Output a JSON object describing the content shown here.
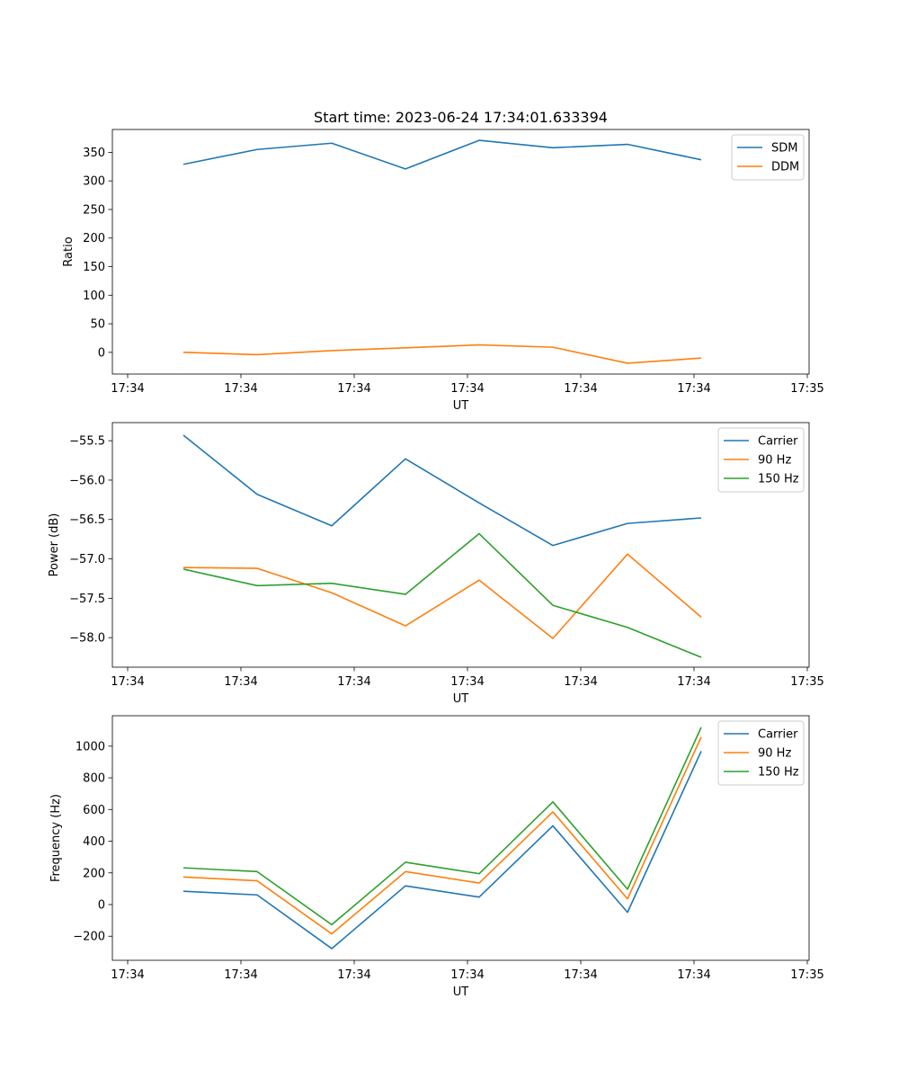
{
  "figure": {
    "title": "Start time: 2023-06-24 17:34:01.633394"
  },
  "chart_data": [
    {
      "type": "line",
      "xlabel": "UT",
      "ylabel": "Ratio",
      "x_tick_labels": [
        "17:34",
        "17:34",
        "17:34",
        "17:34",
        "17:34",
        "17:34",
        "17:35"
      ],
      "yticks": [
        0,
        50,
        100,
        150,
        200,
        250,
        300,
        350
      ],
      "ylim": [
        -38,
        390
      ],
      "legend": "top-right",
      "series": [
        {
          "name": "SDM",
          "color": "#1f77b4",
          "values": [
            329,
            355,
            366,
            321,
            371,
            358,
            364,
            337
          ]
        },
        {
          "name": "DDM",
          "color": "#ff7f0e",
          "values": [
            0,
            -4,
            3,
            8,
            13,
            9,
            -19,
            -10
          ]
        }
      ]
    },
    {
      "type": "line",
      "xlabel": "UT",
      "ylabel": "Power (dB)",
      "x_tick_labels": [
        "17:34",
        "17:34",
        "17:34",
        "17:34",
        "17:34",
        "17:34",
        "17:35"
      ],
      "yticks": [
        -58.0,
        -57.5,
        -57.0,
        -56.5,
        -56.0,
        -55.5
      ],
      "ytick_labels": [
        "−58.0",
        "−57.5",
        "−57.0",
        "−56.5",
        "−56.0",
        "−55.5"
      ],
      "ylim": [
        -58.375,
        -55.27
      ],
      "legend": "top-right",
      "series": [
        {
          "name": "Carrier",
          "color": "#1f77b4",
          "values": [
            -55.43,
            -56.18,
            -56.58,
            -55.73,
            -56.29,
            -56.83,
            -56.55,
            -56.48
          ]
        },
        {
          "name": "90 Hz",
          "color": "#ff7f0e",
          "values": [
            -57.11,
            -57.12,
            -57.43,
            -57.85,
            -57.27,
            -58.01,
            -56.94,
            -57.74
          ]
        },
        {
          "name": "150 Hz",
          "color": "#2ca02c",
          "values": [
            -57.13,
            -57.34,
            -57.31,
            -57.45,
            -56.68,
            -57.59,
            -57.87,
            -58.25
          ]
        }
      ]
    },
    {
      "type": "line",
      "xlabel": "UT",
      "ylabel": "Frequency (Hz)",
      "x_tick_labels": [
        "17:34",
        "17:34",
        "17:34",
        "17:34",
        "17:34",
        "17:34",
        "17:35"
      ],
      "yticks": [
        -200,
        0,
        200,
        400,
        600,
        800,
        1000
      ],
      "ytick_labels": [
        "−200",
        "0",
        "200",
        "400",
        "600",
        "800",
        "1000"
      ],
      "ylim": [
        -352,
        1192
      ],
      "legend": "top-right",
      "series": [
        {
          "name": "Carrier",
          "color": "#1f77b4",
          "values": [
            84,
            61,
            -278,
            118,
            47,
            497,
            -49,
            968
          ]
        },
        {
          "name": "90 Hz",
          "color": "#ff7f0e",
          "values": [
            174,
            150,
            -185,
            208,
            136,
            585,
            36,
            1058
          ]
        },
        {
          "name": "150 Hz",
          "color": "#2ca02c",
          "values": [
            232,
            208,
            -127,
            267,
            195,
            648,
            97,
            1119
          ]
        }
      ]
    }
  ]
}
